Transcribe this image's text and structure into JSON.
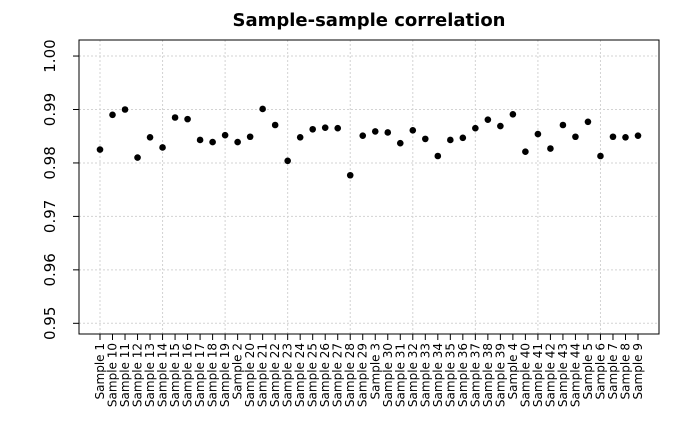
{
  "chart_data": {
    "type": "scatter",
    "title": "Sample-sample correlation",
    "xlabel": "",
    "ylabel": "",
    "ylim": [
      0.948,
      1.003
    ],
    "yticks": [
      "0.95",
      "0.96",
      "0.97",
      "0.98",
      "0.99",
      "1.00"
    ],
    "grid": true,
    "categories": [
      "Sample 1",
      "Sample 10",
      "Sample 11",
      "Sample 12",
      "Sample 13",
      "Sample 14",
      "Sample 15",
      "Sample 16",
      "Sample 17",
      "Sample 18",
      "Sample 19",
      "Sample 2",
      "Sample 20",
      "Sample 21",
      "Sample 22",
      "Sample 23",
      "Sample 24",
      "Sample 25",
      "Sample 26",
      "Sample 27",
      "Sample 28",
      "Sample 29",
      "Sample 3",
      "Sample 30",
      "Sample 31",
      "Sample 32",
      "Sample 33",
      "Sample 34",
      "Sample 35",
      "Sample 36",
      "Sample 37",
      "Sample 38",
      "Sample 39",
      "Sample 4",
      "Sample 40",
      "Sample 41",
      "Sample 42",
      "Sample 43",
      "Sample 44",
      "Sample 5",
      "Sample 6",
      "Sample 7",
      "Sample 8",
      "Sample 9"
    ],
    "values": [
      0.9825,
      0.989,
      0.99,
      0.981,
      0.9848,
      0.9829,
      0.9885,
      0.9882,
      0.9843,
      0.9839,
      0.9852,
      0.9839,
      0.9849,
      0.9901,
      0.9871,
      0.9804,
      0.9848,
      0.9863,
      0.9866,
      0.9865,
      0.9777,
      0.9851,
      0.9859,
      0.9857,
      0.9837,
      0.9861,
      0.9845,
      0.9813,
      0.9843,
      0.9847,
      0.9865,
      0.9881,
      0.9869,
      0.9891,
      0.9821,
      0.9854,
      0.9827,
      0.9871,
      0.9849,
      0.9877,
      0.9813,
      0.9849,
      0.9848,
      0.9851
    ]
  }
}
